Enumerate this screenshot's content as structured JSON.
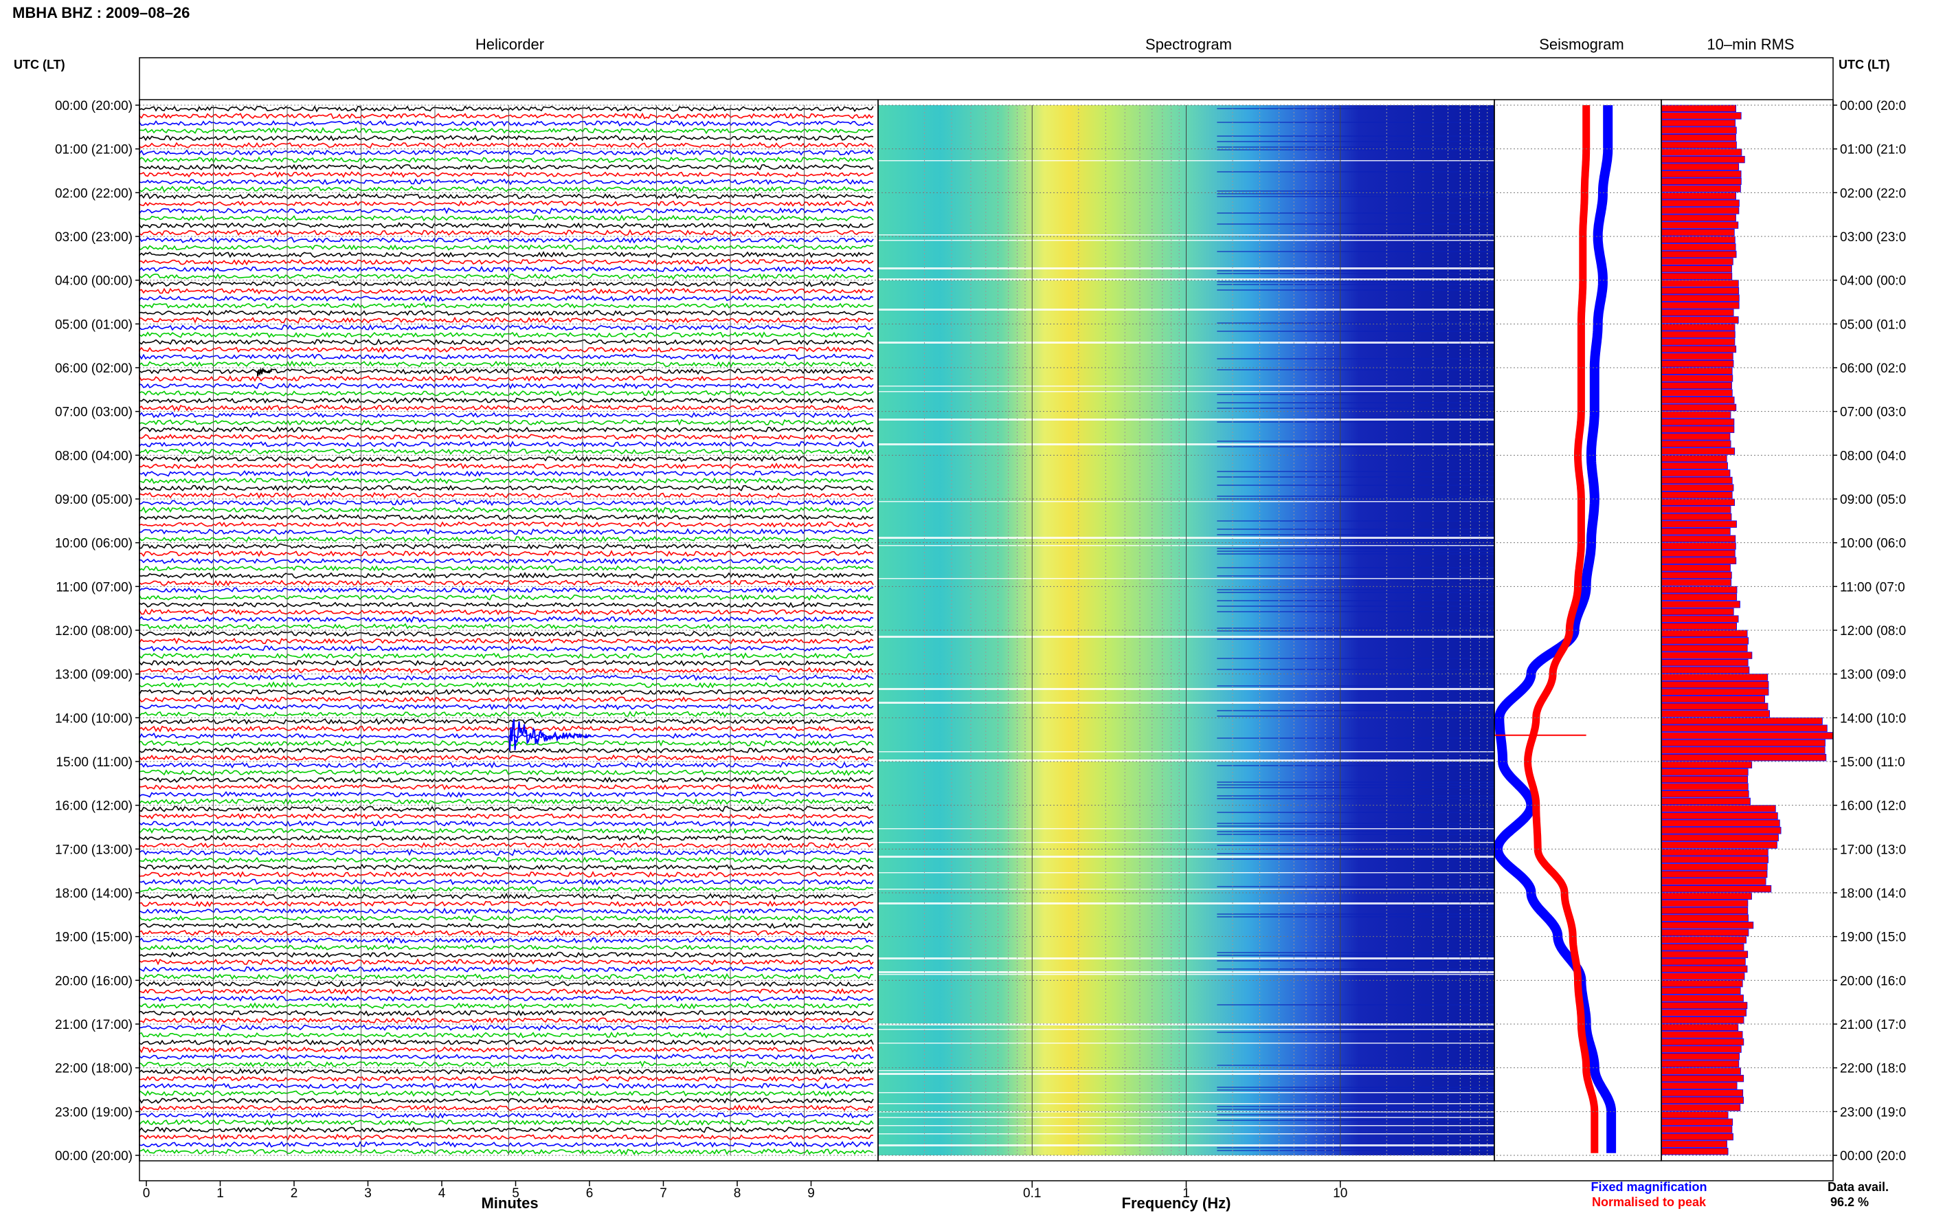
{
  "station_title": "MBHA BHZ : 2009–08–26",
  "panels": {
    "helicorder": "Helicorder",
    "spectrogram": "Spectrogram",
    "seismogram": "Seismogram",
    "rms": "10–min RMS"
  },
  "time_axis_label": "UTC (LT)",
  "rows": [
    "00:00 (20:00)",
    "01:00 (21:00)",
    "02:00 (22:00)",
    "03:00 (23:00)",
    "04:00 (00:00)",
    "05:00 (01:00)",
    "06:00 (02:00)",
    "07:00 (03:00)",
    "08:00 (04:00)",
    "09:00 (05:00)",
    "10:00 (06:00)",
    "11:00 (07:00)",
    "12:00 (08:00)",
    "13:00 (09:00)",
    "14:00 (10:00)",
    "15:00 (11:00)",
    "16:00 (12:00)",
    "17:00 (13:00)",
    "18:00 (14:00)",
    "19:00 (15:00)",
    "20:00 (16:00)",
    "21:00 (17:00)",
    "22:00 (18:00)",
    "23:00 (19:00)",
    "00:00 (20:00)"
  ],
  "right_rows": [
    "00:00 (20:0",
    "01:00 (21:0",
    "02:00 (22:0",
    "03:00 (23:0",
    "04:00 (00:0",
    "05:00 (01:0",
    "06:00 (02:0",
    "07:00 (03:0",
    "08:00 (04:0",
    "09:00 (05:0",
    "10:00 (06:0",
    "11:00 (07:0",
    "12:00 (08:0",
    "13:00 (09:0",
    "14:00 (10:0",
    "15:00 (11:0",
    "16:00 (12:0",
    "17:00 (13:0",
    "18:00 (14:0",
    "19:00 (15:0",
    "20:00 (16:0",
    "21:00 (17:0",
    "22:00 (18:0",
    "23:00 (19:0",
    "00:00 (20:0"
  ],
  "minutes_ticks": [
    "0",
    "1",
    "2",
    "3",
    "4",
    "5",
    "6",
    "7",
    "8",
    "9"
  ],
  "minutes_label": "Minutes",
  "frequency_ticks": [
    "0.1",
    "1",
    "10"
  ],
  "frequency_label": "Frequency (Hz)",
  "legend": {
    "fixed": "Fixed magnification",
    "normalised": "Normalised to peak"
  },
  "data_avail_label": "Data avail.",
  "data_avail_value": "96.2 %",
  "colors": {
    "trace_black": "#000000",
    "trace_red": "#ff0000",
    "trace_blue": "#0000ff",
    "trace_green": "#00cc00",
    "seis_fixed": "#0000ff",
    "seis_normalised": "#ff0000",
    "rms_bar": "#ff0000",
    "rms_edge": "#0000ff"
  },
  "chart_data": [
    {
      "type": "line",
      "title": "Helicorder",
      "xlabel": "Minutes",
      "xlim": [
        0,
        10
      ],
      "rows_per_hour": 6,
      "hours": 24,
      "trace_colors": [
        "black",
        "red",
        "blue",
        "green"
      ],
      "events": [
        {
          "hour_utc": 14,
          "minute": 5.0,
          "trace": "blue",
          "description": "large"
        },
        {
          "hour_utc": 6,
          "minute": 1.6,
          "trace": "black",
          "description": "small"
        }
      ]
    },
    {
      "type": "heatmap",
      "title": "Spectrogram",
      "xlabel": "Frequency (Hz)",
      "xscale": "log",
      "xlim": [
        0.01,
        100
      ],
      "peak_band_hz": [
        0.2,
        0.35
      ]
    },
    {
      "type": "line",
      "title": "Seismogram",
      "series": [
        {
          "name": "Fixed magnification",
          "values": [
            0.68,
            0.68,
            0.65,
            0.62,
            0.65,
            0.62,
            0.6,
            0.6,
            0.58,
            0.6,
            0.58,
            0.55,
            0.48,
            0.22,
            0.03,
            0.05,
            0.22,
            0.02,
            0.22,
            0.38,
            0.52,
            0.55,
            0.6,
            0.7,
            0.7
          ]
        },
        {
          "name": "Normalised to peak",
          "values": [
            0.55,
            0.55,
            0.54,
            0.53,
            0.53,
            0.52,
            0.52,
            0.52,
            0.5,
            0.52,
            0.52,
            0.5,
            0.45,
            0.35,
            0.25,
            0.2,
            0.25,
            0.26,
            0.42,
            0.47,
            0.5,
            0.52,
            0.55,
            0.6,
            0.6
          ]
        }
      ]
    },
    {
      "type": "bar",
      "title": "10–min RMS",
      "orientation": "horizontal",
      "values_per_hour": [
        0.45,
        0.47,
        0.44,
        0.43,
        0.44,
        0.42,
        0.42,
        0.42,
        0.4,
        0.42,
        0.42,
        0.44,
        0.52,
        0.62,
        0.95,
        0.52,
        0.68,
        0.62,
        0.52,
        0.5,
        0.48,
        0.46,
        0.46,
        0.4
      ]
    }
  ]
}
